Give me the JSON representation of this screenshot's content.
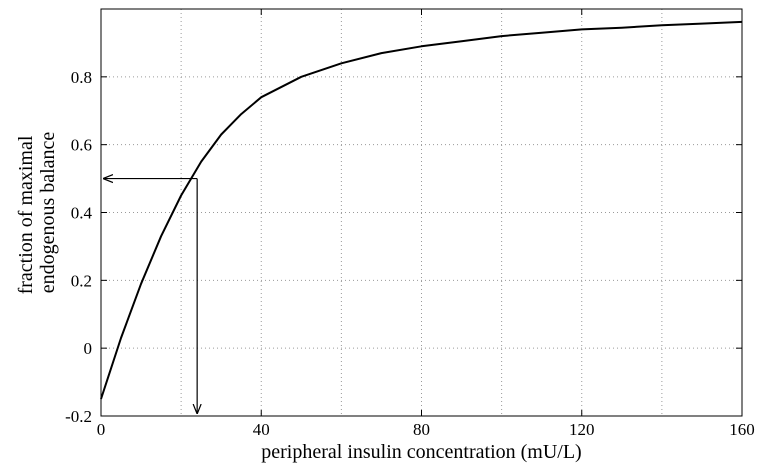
{
  "chart_data": {
    "type": "line",
    "title": "",
    "xlabel": "peripheral insulin concentration (mU/L)",
    "ylabel": [
      "fraction of maximal",
      "endogenous balance"
    ],
    "xlim": [
      0,
      160
    ],
    "ylim": [
      -0.2,
      1.0
    ],
    "xticks": [
      0,
      40,
      80,
      120,
      160
    ],
    "xtick_labels": [
      "0",
      "40",
      "80",
      "120",
      "160"
    ],
    "xgrid_minor": [
      20,
      60,
      100,
      140
    ],
    "yticks": [
      -0.2,
      0,
      0.2,
      0.4,
      0.6,
      0.8
    ],
    "ytick_labels": [
      "-0.2",
      "0",
      "0.2",
      "0.4",
      "0.6",
      "0.8"
    ],
    "grid": true,
    "line_color": "#000000",
    "series": [
      {
        "x": [
          0,
          5,
          10,
          15,
          20,
          25,
          30,
          35,
          40,
          50,
          60,
          70,
          80,
          90,
          100,
          110,
          120,
          130,
          140,
          150,
          160
        ],
        "values": [
          -0.15,
          0.03,
          0.19,
          0.33,
          0.45,
          0.55,
          0.63,
          0.69,
          0.74,
          0.8,
          0.84,
          0.87,
          0.89,
          0.905,
          0.92,
          0.93,
          0.94,
          0.945,
          0.952,
          0.957,
          0.962
        ]
      }
    ],
    "annotations": [
      {
        "type": "arrow",
        "from": [
          24,
          0.5
        ],
        "to": [
          0,
          0.5
        ]
      },
      {
        "type": "arrow",
        "from": [
          24,
          0.5
        ],
        "to": [
          24,
          -0.2
        ]
      }
    ]
  }
}
